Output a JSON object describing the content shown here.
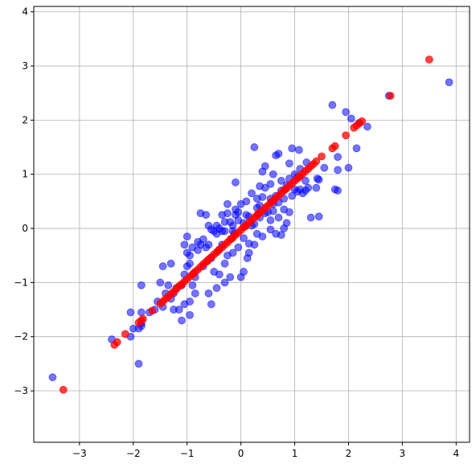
{
  "chart_data": {
    "type": "scatter",
    "title": "",
    "xlabel": "",
    "ylabel": "",
    "xlim": [
      -3.85,
      4.25
    ],
    "ylim": [
      -3.95,
      4.1
    ],
    "xticks": [
      -3,
      -2,
      -1,
      0,
      1,
      2,
      3,
      4
    ],
    "yticks": [
      -3,
      -2,
      -1,
      0,
      1,
      2,
      3,
      4
    ],
    "xtick_labels": [
      "−3",
      "−2",
      "−1",
      "0",
      "1",
      "2",
      "3",
      "4"
    ],
    "ytick_labels": [
      "−3",
      "−2",
      "−1",
      "0",
      "1",
      "2",
      "3",
      "4"
    ],
    "grid": true,
    "series": [
      {
        "color": "#0000ff",
        "alpha": 0.55,
        "points": [
          [
            -3.5,
            -2.75
          ],
          [
            3.87,
            2.7
          ],
          [
            2.75,
            2.45
          ],
          [
            1.7,
            2.28
          ],
          [
            1.95,
            2.15
          ],
          [
            2.05,
            2.03
          ],
          [
            2.35,
            1.88
          ],
          [
            2.2,
            1.95
          ],
          [
            2.15,
            1.48
          ],
          [
            2.0,
            1.12
          ],
          [
            1.8,
            1.32
          ],
          [
            1.8,
            1.08
          ],
          [
            1.55,
            1.12
          ],
          [
            1.75,
            0.72
          ],
          [
            1.42,
            0.92
          ],
          [
            1.22,
            1.22
          ],
          [
            1.08,
            1.45
          ],
          [
            0.95,
            1.48
          ],
          [
            0.7,
            1.38
          ],
          [
            0.65,
            1.35
          ],
          [
            0.25,
            1.5
          ],
          [
            0.45,
            1.15
          ],
          [
            0.4,
            1.05
          ],
          [
            0.6,
            1.0
          ],
          [
            0.9,
            1.2
          ],
          [
            1.1,
            1.1
          ],
          [
            1.2,
            0.88
          ],
          [
            1.0,
            0.72
          ],
          [
            1.05,
            0.95
          ],
          [
            0.85,
            0.8
          ],
          [
            0.75,
            0.7
          ],
          [
            0.55,
            0.82
          ],
          [
            0.65,
            0.6
          ],
          [
            0.45,
            0.75
          ],
          [
            0.35,
            0.78
          ],
          [
            0.2,
            0.65
          ],
          [
            0.4,
            0.58
          ],
          [
            0.6,
            0.45
          ],
          [
            0.95,
            0.6
          ],
          [
            0.8,
            0.35
          ],
          [
            1.3,
            0.2
          ],
          [
            1.45,
            0.22
          ],
          [
            1.8,
            0.7
          ],
          [
            1.15,
            0.65
          ],
          [
            0.7,
            0.2
          ],
          [
            0.55,
            0.15
          ],
          [
            0.45,
            0.28
          ],
          [
            0.55,
            -0.02
          ],
          [
            0.8,
            0.0
          ],
          [
            0.65,
            -0.1
          ],
          [
            0.75,
            -0.12
          ],
          [
            0.4,
            -0.15
          ],
          [
            0.1,
            0.5
          ],
          [
            0.1,
            0.25
          ],
          [
            0.3,
            0.38
          ],
          [
            0.2,
            0.05
          ],
          [
            0.25,
            -0.3
          ],
          [
            0.05,
            -0.18
          ],
          [
            0.15,
            -0.45
          ],
          [
            -0.05,
            0.15
          ],
          [
            -0.1,
            0.35
          ],
          [
            -0.1,
            0.25
          ],
          [
            -0.12,
            -0.1
          ],
          [
            -0.15,
            0.05
          ],
          [
            -0.2,
            0.12
          ],
          [
            -0.3,
            0.12
          ],
          [
            -0.25,
            0.28
          ],
          [
            -0.1,
            0.85
          ],
          [
            -0.25,
            0.45
          ],
          [
            -0.3,
            -0.05
          ],
          [
            -0.35,
            -0.05
          ],
          [
            -0.4,
            0.0
          ],
          [
            -0.45,
            -0.1
          ],
          [
            -0.5,
            -0.05
          ],
          [
            -0.55,
            -0.02
          ],
          [
            -0.6,
            0.05
          ],
          [
            -0.7,
            -0.2
          ],
          [
            -0.75,
            -0.3
          ],
          [
            -0.8,
            -0.4
          ],
          [
            -0.55,
            -0.55
          ],
          [
            -0.3,
            -0.65
          ],
          [
            -0.2,
            -0.9
          ],
          [
            -0.3,
            -1.0
          ],
          [
            -0.45,
            -1.1
          ],
          [
            -0.6,
            -1.2
          ],
          [
            -0.55,
            -1.4
          ],
          [
            -0.95,
            -0.65
          ],
          [
            -0.85,
            -0.9
          ],
          [
            -0.9,
            -1.05
          ],
          [
            -1.0,
            -0.7
          ],
          [
            -1.05,
            -0.85
          ],
          [
            -1.1,
            -1.05
          ],
          [
            -1.2,
            -1.1
          ],
          [
            -1.05,
            -1.4
          ],
          [
            -1.15,
            -1.5
          ],
          [
            -1.25,
            -1.5
          ],
          [
            -1.3,
            -1.3
          ],
          [
            -1.4,
            -1.2
          ],
          [
            -1.45,
            -1.45
          ],
          [
            -1.5,
            -1.0
          ],
          [
            -1.45,
            -0.7
          ],
          [
            -1.3,
            -0.65
          ],
          [
            -1.0,
            -0.15
          ],
          [
            -1.05,
            -0.3
          ],
          [
            -1.0,
            -0.45
          ],
          [
            -0.95,
            -0.5
          ],
          [
            -0.9,
            -0.35
          ],
          [
            -0.8,
            -0.25
          ],
          [
            -0.75,
            0.28
          ],
          [
            -0.65,
            0.25
          ],
          [
            -0.35,
            0.25
          ],
          [
            -1.35,
            -1.05
          ],
          [
            -1.55,
            -1.35
          ],
          [
            -1.6,
            -1.5
          ],
          [
            -1.7,
            -1.55
          ],
          [
            -1.85,
            -1.55
          ],
          [
            -1.85,
            -1.8
          ],
          [
            -1.85,
            -1.75
          ],
          [
            -1.9,
            -1.85
          ],
          [
            -2.0,
            -1.85
          ],
          [
            -2.05,
            -1.55
          ],
          [
            -1.85,
            -1.05
          ],
          [
            -1.9,
            -2.5
          ],
          [
            -2.05,
            -2.0
          ],
          [
            -2.4,
            -2.05
          ],
          [
            0.0,
            0.45
          ],
          [
            0.3,
            0.55
          ],
          [
            0.5,
            0.3
          ],
          [
            0.35,
            0.2
          ],
          [
            0.15,
            -0.28
          ],
          [
            -0.05,
            -0.35
          ],
          [
            0.05,
            -0.8
          ],
          [
            0.12,
            -0.55
          ],
          [
            0.0,
            -0.9
          ],
          [
            0.9,
            0.3
          ],
          [
            1.05,
            0.68
          ],
          [
            1.2,
            0.7
          ],
          [
            1.25,
            0.75
          ],
          [
            1.4,
            0.75
          ],
          [
            1.45,
            0.9
          ],
          [
            0.85,
            0.1
          ],
          [
            0.6,
            0.32
          ],
          [
            0.7,
            0.48
          ],
          [
            1.1,
            0.72
          ],
          [
            0.9,
            0.92
          ],
          [
            -0.15,
            -0.05
          ],
          [
            -0.6,
            -0.3
          ],
          [
            -0.25,
            -0.5
          ],
          [
            -0.15,
            -0.45
          ],
          [
            -0.65,
            -0.35
          ],
          [
            -0.5,
            -0.8
          ],
          [
            -0.7,
            -0.7
          ],
          [
            -0.4,
            -0.85
          ],
          [
            -0.95,
            -1.6
          ],
          [
            -0.95,
            -1.35
          ],
          [
            -0.85,
            -1.2
          ],
          [
            -1.1,
            -1.7
          ],
          [
            -1.25,
            -1.2
          ],
          [
            0.35,
            0.42
          ],
          [
            0.25,
            0.08
          ],
          [
            0.05,
            0.1
          ],
          [
            0.15,
            0.22
          ],
          [
            -0.05,
            0.3
          ],
          [
            -0.45,
            0.05
          ],
          [
            0.3,
            -0.1
          ],
          [
            -0.35,
            -0.3
          ],
          [
            1.0,
            1.0
          ],
          [
            0.8,
            0.55
          ],
          [
            0.75,
            0.88
          ],
          [
            0.55,
            0.55
          ]
        ]
      },
      {
        "color": "#ff0000",
        "alpha": 0.75,
        "points": [
          [
            -3.3,
            -2.98
          ],
          [
            -2.35,
            -2.15
          ],
          [
            -2.3,
            -2.1
          ],
          [
            -2.15,
            -1.95
          ],
          [
            -1.9,
            -1.74
          ],
          [
            -1.85,
            -1.7
          ],
          [
            -1.82,
            -1.67
          ],
          [
            -1.65,
            -1.52
          ],
          [
            -1.5,
            -1.39
          ],
          [
            -1.45,
            -1.35
          ],
          [
            -1.4,
            -1.3
          ],
          [
            -1.35,
            -1.26
          ],
          [
            -1.3,
            -1.21
          ],
          [
            -1.25,
            -1.17
          ],
          [
            -1.2,
            -1.12
          ],
          [
            -1.15,
            -1.07
          ],
          [
            -1.1,
            -1.03
          ],
          [
            -1.05,
            -0.98
          ],
          [
            -1.0,
            -0.94
          ],
          [
            -0.95,
            -0.89
          ],
          [
            -0.9,
            -0.85
          ],
          [
            -0.85,
            -0.8
          ],
          [
            -0.8,
            -0.76
          ],
          [
            -0.75,
            -0.71
          ],
          [
            -0.7,
            -0.66
          ],
          [
            -0.65,
            -0.62
          ],
          [
            -0.6,
            -0.57
          ],
          [
            -0.55,
            -0.53
          ],
          [
            -0.5,
            -0.48
          ],
          [
            -0.45,
            -0.44
          ],
          [
            -0.4,
            -0.39
          ],
          [
            -0.35,
            -0.35
          ],
          [
            -0.3,
            -0.3
          ],
          [
            -0.25,
            -0.26
          ],
          [
            -0.2,
            -0.21
          ],
          [
            -0.15,
            -0.17
          ],
          [
            -0.1,
            -0.12
          ],
          [
            -0.05,
            -0.08
          ],
          [
            0.0,
            -0.03
          ],
          [
            0.05,
            0.02
          ],
          [
            0.1,
            0.06
          ],
          [
            0.15,
            0.11
          ],
          [
            0.2,
            0.15
          ],
          [
            0.25,
            0.2
          ],
          [
            0.3,
            0.24
          ],
          [
            0.35,
            0.29
          ],
          [
            0.4,
            0.33
          ],
          [
            0.45,
            0.38
          ],
          [
            0.5,
            0.42
          ],
          [
            0.55,
            0.47
          ],
          [
            0.6,
            0.51
          ],
          [
            0.65,
            0.56
          ],
          [
            0.7,
            0.6
          ],
          [
            0.75,
            0.65
          ],
          [
            0.8,
            0.7
          ],
          [
            0.85,
            0.74
          ],
          [
            0.9,
            0.79
          ],
          [
            0.95,
            0.83
          ],
          [
            1.0,
            0.88
          ],
          [
            1.05,
            0.92
          ],
          [
            1.1,
            0.97
          ],
          [
            1.15,
            1.01
          ],
          [
            1.2,
            1.06
          ],
          [
            1.25,
            1.1
          ],
          [
            1.3,
            1.15
          ],
          [
            1.35,
            1.19
          ],
          [
            1.4,
            1.24
          ],
          [
            1.5,
            1.33
          ],
          [
            1.7,
            1.48
          ],
          [
            1.75,
            1.52
          ],
          [
            1.95,
            1.72
          ],
          [
            2.1,
            1.86
          ],
          [
            2.15,
            1.9
          ],
          [
            2.2,
            1.94
          ],
          [
            2.25,
            1.98
          ],
          [
            2.78,
            2.45
          ],
          [
            3.5,
            3.12
          ],
          [
            -0.62,
            -0.6
          ],
          [
            -0.42,
            -0.41
          ],
          [
            -0.18,
            -0.19
          ],
          [
            0.08,
            0.04
          ],
          [
            0.32,
            0.27
          ],
          [
            0.58,
            0.5
          ],
          [
            0.82,
            0.72
          ],
          [
            1.08,
            0.95
          ],
          [
            -0.88,
            -0.83
          ],
          [
            -1.12,
            -1.05
          ]
        ]
      }
    ]
  }
}
